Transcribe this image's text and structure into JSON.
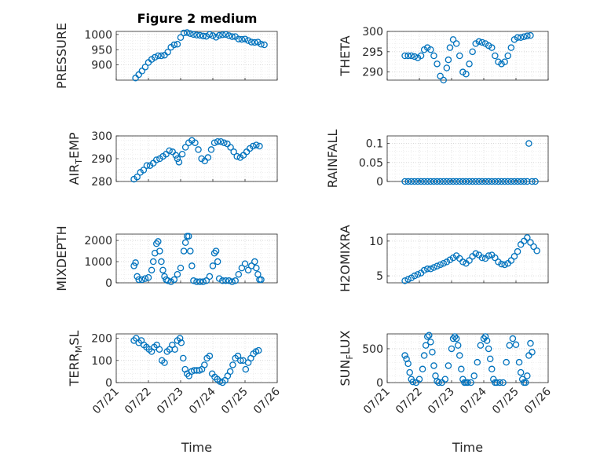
{
  "figure": {
    "title": "Figure 2 medium"
  },
  "colors": {
    "marker": "#0072BD",
    "axis": "#262626",
    "grid": "#d0d0d0"
  },
  "chart_data": [
    {
      "type": "scatter",
      "ylabel": "PRESSURE",
      "title": "Figure 2 medium",
      "xlim": [
        0,
        5
      ],
      "ylim": [
        850,
        1010
      ],
      "yticks": [
        900,
        950,
        1000
      ],
      "yticklabels": [
        "900",
        "950",
        "1000"
      ],
      "xticklabels": [],
      "xlabel": "",
      "grid": true,
      "marker": "circle-open",
      "x": [
        0.6,
        0.7,
        0.8,
        0.9,
        1.0,
        1.1,
        1.2,
        1.3,
        1.4,
        1.5,
        1.6,
        1.7,
        1.8,
        1.9,
        2.0,
        2.1,
        2.2,
        2.3,
        2.4,
        2.5,
        2.6,
        2.7,
        2.8,
        2.9,
        3.0,
        3.1,
        3.2,
        3.3,
        3.4,
        3.5,
        3.6,
        3.7,
        3.8,
        3.9,
        4.0,
        4.1,
        4.2,
        4.3,
        4.4,
        4.5,
        4.6
      ],
      "y": [
        857,
        868,
        880,
        893,
        908,
        918,
        925,
        930,
        930,
        932,
        942,
        958,
        966,
        968,
        990,
        1005,
        1006,
        1003,
        1000,
        998,
        997,
        995,
        994,
        1000,
        996,
        991,
        997,
        999,
        1000,
        996,
        993,
        993,
        985,
        984,
        985,
        980,
        975,
        974,
        975,
        968,
        966
      ]
    },
    {
      "type": "scatter",
      "ylabel": "THETA",
      "xlim": [
        0,
        5
      ],
      "ylim": [
        288,
        300
      ],
      "yticks": [
        290,
        295,
        300
      ],
      "yticklabels": [
        "290",
        "295",
        "300"
      ],
      "xticklabels": [],
      "xlabel": "",
      "grid": true,
      "marker": "circle-open",
      "x": [
        0.55,
        0.65,
        0.75,
        0.85,
        0.95,
        1.05,
        1.15,
        1.25,
        1.35,
        1.45,
        1.55,
        1.65,
        1.75,
        1.85,
        1.9,
        1.95,
        2.05,
        2.15,
        2.25,
        2.35,
        2.45,
        2.55,
        2.65,
        2.75,
        2.85,
        2.95,
        3.05,
        3.15,
        3.25,
        3.35,
        3.45,
        3.55,
        3.65,
        3.75,
        3.85,
        3.95,
        4.05,
        4.15,
        4.25,
        4.35,
        4.45
      ],
      "y": [
        294,
        294,
        294,
        293.8,
        293.5,
        294,
        295.5,
        296,
        295.5,
        294,
        292,
        289,
        288,
        291,
        293,
        296,
        298,
        297,
        294,
        290,
        289.5,
        292,
        295,
        297,
        297.5,
        297.3,
        297,
        296.5,
        296,
        294,
        292.5,
        292,
        292.5,
        294,
        296,
        298,
        298.5,
        298.5,
        298.7,
        298.9,
        299
      ]
    },
    {
      "type": "scatter",
      "ylabel": "AIR_TEMP",
      "ylabel_sub": "T",
      "ylabel_pre": "AIR",
      "ylabel_post": "EMP",
      "xlim": [
        0,
        5
      ],
      "ylim": [
        280,
        300
      ],
      "yticks": [
        280,
        290,
        300
      ],
      "yticklabels": [
        "280",
        "290",
        "300"
      ],
      "xticklabels": [],
      "xlabel": "",
      "grid": true,
      "marker": "circle-open",
      "x": [
        0.55,
        0.65,
        0.75,
        0.85,
        0.95,
        1.05,
        1.15,
        1.25,
        1.35,
        1.45,
        1.55,
        1.65,
        1.75,
        1.85,
        1.9,
        1.95,
        2.05,
        2.15,
        2.25,
        2.35,
        2.45,
        2.55,
        2.65,
        2.75,
        2.85,
        2.95,
        3.05,
        3.15,
        3.25,
        3.35,
        3.45,
        3.55,
        3.65,
        3.75,
        3.85,
        3.95,
        4.05,
        4.15,
        4.25,
        4.35,
        4.45
      ],
      "y": [
        281,
        282,
        284,
        285,
        287,
        287,
        288,
        289.5,
        290,
        291,
        292,
        293.5,
        293,
        291.5,
        290,
        288.5,
        292,
        295,
        297,
        298,
        297,
        294,
        290,
        289,
        290.5,
        294,
        297,
        297.5,
        297.5,
        297,
        296.5,
        295,
        293,
        291,
        290.5,
        291.5,
        293,
        294.5,
        295.5,
        296,
        295.5
      ]
    },
    {
      "type": "scatter",
      "ylabel": "RAINFALL",
      "xlim": [
        0,
        5
      ],
      "ylim": [
        0,
        0.12
      ],
      "yticks": [
        0,
        0.05,
        0.1
      ],
      "yticklabels": [
        "0",
        "0.05",
        "0.1"
      ],
      "xticklabels": [],
      "xlabel": "",
      "grid": true,
      "marker": "circle-open",
      "x": [
        0.55,
        0.65,
        0.75,
        0.85,
        0.95,
        1.05,
        1.15,
        1.25,
        1.35,
        1.45,
        1.55,
        1.65,
        1.75,
        1.85,
        1.95,
        2.05,
        2.15,
        2.25,
        2.35,
        2.45,
        2.55,
        2.65,
        2.75,
        2.85,
        2.95,
        3.05,
        3.15,
        3.25,
        3.35,
        3.45,
        3.55,
        3.65,
        3.75,
        3.85,
        3.95,
        4.05,
        4.15,
        4.25,
        4.35,
        4.4,
        4.5,
        4.6
      ],
      "y": [
        0,
        0,
        0,
        0,
        0,
        0,
        0,
        0,
        0,
        0,
        0,
        0,
        0,
        0,
        0,
        0,
        0,
        0,
        0,
        0,
        0,
        0,
        0,
        0,
        0,
        0,
        0,
        0,
        0,
        0,
        0,
        0,
        0,
        0,
        0,
        0,
        0,
        0,
        0,
        0.1,
        0,
        0
      ]
    },
    {
      "type": "scatter",
      "ylabel": "MIXDEPTH",
      "xlim": [
        0,
        5
      ],
      "ylim": [
        0,
        2300
      ],
      "yticks": [
        0,
        1000,
        2000
      ],
      "yticklabels": [
        "0",
        "1000",
        "2000"
      ],
      "xticklabels": [],
      "xlabel": "",
      "grid": true,
      "marker": "circle-open",
      "x": [
        0.55,
        0.6,
        0.65,
        0.7,
        0.8,
        0.9,
        1.0,
        1.1,
        1.15,
        1.2,
        1.25,
        1.3,
        1.35,
        1.4,
        1.45,
        1.5,
        1.55,
        1.6,
        1.7,
        1.8,
        1.9,
        2.0,
        2.1,
        2.15,
        2.2,
        2.25,
        2.3,
        2.35,
        2.4,
        2.5,
        2.6,
        2.7,
        2.8,
        2.9,
        3.0,
        3.05,
        3.1,
        3.15,
        3.2,
        3.3,
        3.4,
        3.5,
        3.6,
        3.7,
        3.8,
        3.9,
        4.0,
        4.1,
        4.2,
        4.3,
        4.35,
        4.4,
        4.45,
        4.5
      ],
      "y": [
        800,
        950,
        300,
        150,
        150,
        200,
        250,
        600,
        1000,
        1400,
        1850,
        1950,
        1500,
        1000,
        600,
        300,
        150,
        100,
        50,
        150,
        400,
        700,
        1500,
        1900,
        2200,
        2200,
        1500,
        800,
        100,
        50,
        50,
        50,
        100,
        300,
        800,
        1400,
        1500,
        1000,
        200,
        100,
        100,
        100,
        50,
        100,
        400,
        700,
        900,
        600,
        800,
        1000,
        700,
        400,
        150,
        150
      ]
    },
    {
      "type": "scatter",
      "ylabel": "H2OMIXRA",
      "xlim": [
        0,
        5
      ],
      "ylim": [
        4,
        11
      ],
      "yticks": [
        5,
        10
      ],
      "yticklabels": [
        "5",
        "10"
      ],
      "xticklabels": [],
      "xlabel": "",
      "grid": true,
      "marker": "circle-open",
      "x": [
        0.55,
        0.65,
        0.75,
        0.85,
        0.95,
        1.05,
        1.15,
        1.25,
        1.35,
        1.45,
        1.55,
        1.65,
        1.75,
        1.85,
        1.95,
        2.05,
        2.15,
        2.25,
        2.35,
        2.45,
        2.55,
        2.65,
        2.75,
        2.85,
        2.95,
        3.05,
        3.15,
        3.25,
        3.35,
        3.45,
        3.55,
        3.65,
        3.75,
        3.85,
        3.95,
        4.05,
        4.15,
        4.25,
        4.35,
        4.45,
        4.55,
        4.65
      ],
      "y": [
        4.3,
        4.5,
        4.7,
        5.0,
        5.2,
        5.4,
        5.8,
        6.0,
        6.0,
        6.2,
        6.4,
        6.6,
        6.8,
        7.0,
        7.3,
        7.6,
        7.9,
        7.5,
        7.0,
        6.8,
        7.2,
        7.8,
        8.2,
        8.0,
        7.6,
        7.5,
        7.9,
        8.0,
        7.6,
        7.0,
        6.7,
        6.6,
        6.8,
        7.2,
        7.8,
        8.5,
        9.5,
        10.0,
        10.5,
        9.8,
        9.2,
        8.6
      ]
    },
    {
      "type": "scatter",
      "ylabel": "TERR_MSL",
      "ylabel_pre": "TERR",
      "ylabel_sub": "M",
      "ylabel_post": "SL",
      "xlim": [
        0,
        5
      ],
      "ylim": [
        0,
        220
      ],
      "yticks": [
        0,
        100,
        200
      ],
      "yticklabels": [
        "0",
        "100",
        "200"
      ],
      "xticks": [
        0,
        1,
        2,
        3,
        4,
        5
      ],
      "xticklabels": [
        "07/21",
        "07/22",
        "07/23",
        "07/24",
        "07/25",
        "07/26"
      ],
      "xlabel": "Time",
      "grid": true,
      "marker": "circle-open",
      "x": [
        0.55,
        0.62,
        0.7,
        0.78,
        0.86,
        0.94,
        1.02,
        1.1,
        1.18,
        1.26,
        1.34,
        1.42,
        1.5,
        1.58,
        1.66,
        1.74,
        1.82,
        1.9,
        1.98,
        2.02,
        2.08,
        2.14,
        2.2,
        2.26,
        2.34,
        2.42,
        2.5,
        2.58,
        2.66,
        2.74,
        2.82,
        2.9,
        2.98,
        3.06,
        3.14,
        3.22,
        3.3,
        3.38,
        3.46,
        3.54,
        3.62,
        3.7,
        3.78,
        3.86,
        3.94,
        4.02,
        4.1,
        4.18,
        4.26,
        4.34,
        4.42
      ],
      "y": [
        190,
        200,
        180,
        190,
        170,
        160,
        150,
        140,
        160,
        170,
        150,
        100,
        90,
        140,
        150,
        170,
        150,
        190,
        200,
        180,
        110,
        60,
        40,
        30,
        50,
        55,
        55,
        55,
        60,
        80,
        110,
        120,
        40,
        25,
        15,
        5,
        0,
        10,
        30,
        50,
        80,
        110,
        120,
        100,
        100,
        60,
        90,
        110,
        130,
        140,
        145
      ]
    },
    {
      "type": "scatter",
      "ylabel": "SUN_FLUX",
      "ylabel_pre": "SUN",
      "ylabel_sub": "F",
      "ylabel_post": "LUX",
      "xlim": [
        0,
        5
      ],
      "ylim": [
        0,
        720
      ],
      "yticks": [
        0,
        500
      ],
      "yticklabels": [
        "0",
        "500"
      ],
      "xticks": [
        0,
        1,
        2,
        3,
        4,
        5
      ],
      "xticklabels": [
        "07/21",
        "07/22",
        "07/23",
        "07/24",
        "07/25",
        "07/26"
      ],
      "xlabel": "Time",
      "grid": true,
      "marker": "circle-open",
      "x": [
        0.55,
        0.6,
        0.65,
        0.7,
        0.75,
        0.8,
        0.9,
        1.0,
        1.1,
        1.15,
        1.2,
        1.25,
        1.3,
        1.35,
        1.4,
        1.45,
        1.5,
        1.55,
        1.6,
        1.7,
        1.8,
        1.9,
        2.0,
        2.05,
        2.1,
        2.15,
        2.2,
        2.25,
        2.3,
        2.35,
        2.4,
        2.45,
        2.5,
        2.6,
        2.7,
        2.8,
        2.9,
        3.0,
        3.05,
        3.1,
        3.15,
        3.2,
        3.25,
        3.3,
        3.35,
        3.4,
        3.5,
        3.6,
        3.7,
        3.8,
        3.9,
        4.0,
        4.1,
        4.15,
        4.2,
        4.25,
        4.3,
        4.35,
        4.4,
        4.45,
        4.5
      ],
      "y": [
        400,
        350,
        280,
        150,
        50,
        10,
        0,
        50,
        200,
        400,
        550,
        680,
        700,
        600,
        450,
        250,
        100,
        20,
        0,
        0,
        50,
        250,
        500,
        650,
        680,
        650,
        550,
        400,
        200,
        50,
        0,
        0,
        0,
        0,
        100,
        300,
        550,
        650,
        680,
        620,
        500,
        350,
        200,
        50,
        0,
        0,
        0,
        0,
        300,
        550,
        650,
        560,
        300,
        150,
        50,
        0,
        0,
        100,
        400,
        580,
        450
      ]
    }
  ]
}
